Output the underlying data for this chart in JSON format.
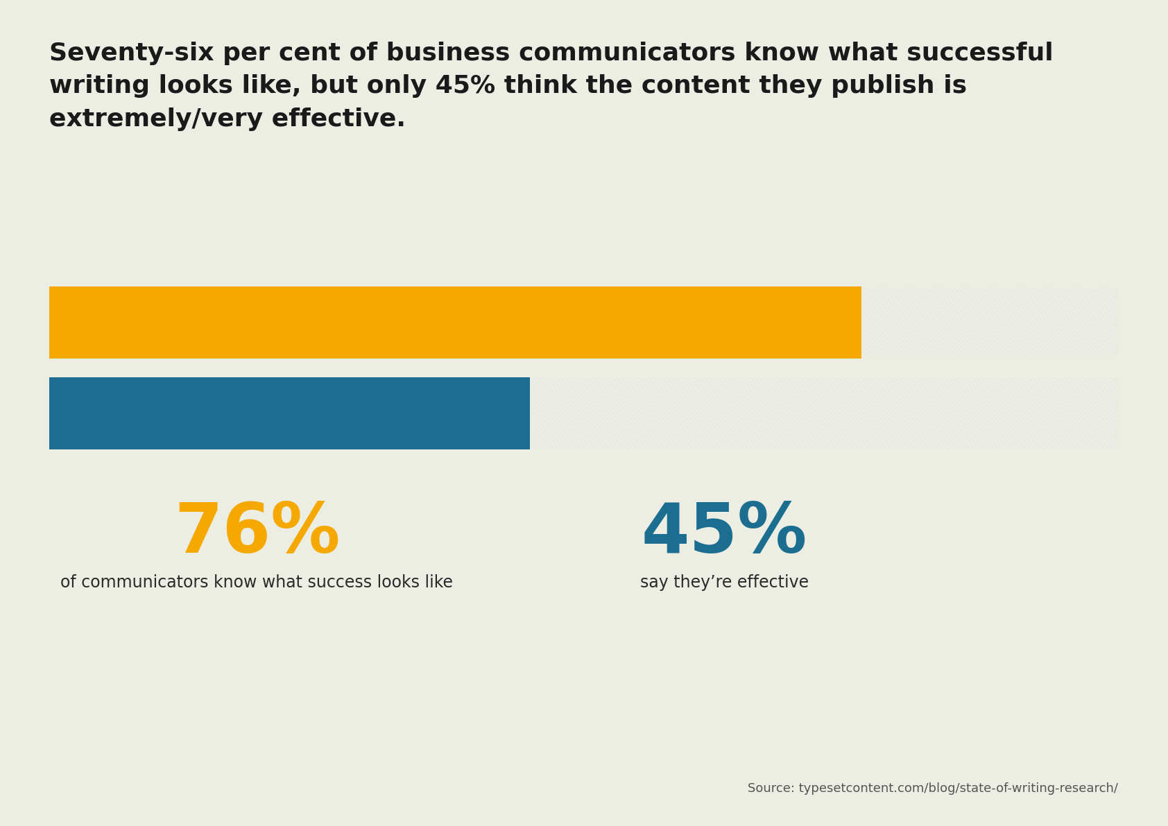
{
  "background_color": "#ECEEE4",
  "title_lines": [
    "Seventy-six per cent of business communicators know what successful",
    "writing looks like, but only 45% think the content they publish is",
    "extremely/very effective."
  ],
  "title_fontsize": 26,
  "title_color": "#1a1a1a",
  "bar1_value": 0.76,
  "bar2_value": 0.45,
  "bar1_color": "#F5A800",
  "bar2_color": "#1B6E8F",
  "hatch_fg_color": "#e8e9e0",
  "hatch_bg_color": "#ECEEE4",
  "stat1_value": "76%",
  "stat1_color": "#F5A800",
  "stat1_label": "of communicators know what success looks like",
  "stat2_value": "45%",
  "stat2_color": "#1B6E8F",
  "stat2_label": "say they’re effective",
  "stat_fontsize": 72,
  "stat_label_fontsize": 17,
  "stat_label_color": "#2a2a2a",
  "source_text": "Source: typesetcontent.com/blog/state-of-writing-research/",
  "source_fontsize": 13,
  "source_color": "#555555"
}
